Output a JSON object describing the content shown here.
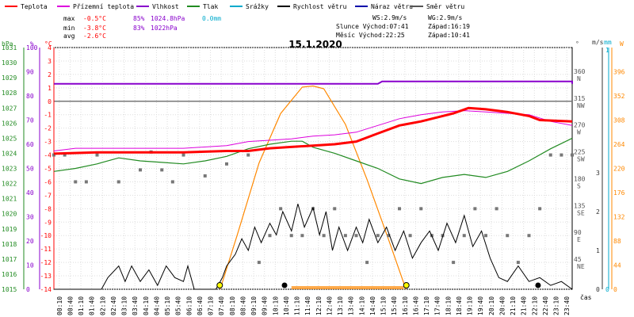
{
  "chart_data": {
    "type": "line",
    "title": "15.1.2020",
    "x_axis_label": "čas",
    "x_ticks": [
      "00:10",
      "00:40",
      "01:10",
      "01:40",
      "02:10",
      "02:40",
      "03:10",
      "03:40",
      "04:10",
      "04:40",
      "05:10",
      "05:40",
      "06:10",
      "06:40",
      "07:10",
      "07:40",
      "08:10",
      "08:40",
      "09:10",
      "09:40",
      "10:10",
      "10:40",
      "11:10",
      "11:40",
      "12:10",
      "12:40",
      "13:10",
      "13:40",
      "14:10",
      "14:40",
      "15:10",
      "15:40",
      "16:10",
      "16:40",
      "17:10",
      "17:40",
      "18:10",
      "18:40",
      "19:10",
      "19:40",
      "20:10",
      "20:40",
      "21:10",
      "21:40",
      "22:10",
      "22:40",
      "23:10",
      "23:40"
    ],
    "legend": [
      {
        "name": "Teplota",
        "color": "#ff0000"
      },
      {
        "name": "Přízemní teplota",
        "color": "#dd00dd"
      },
      {
        "name": "Vlhkost",
        "color": "#8800cc"
      },
      {
        "name": "Tlak",
        "color": "#228b22"
      },
      {
        "name": "Srážky",
        "color": "#00aacc"
      },
      {
        "name": "Rychlost větru",
        "color": "#000000"
      },
      {
        "name": "Náraz větru",
        "color": "#0000aa"
      },
      {
        "name": "Směr větru",
        "color": "#555555"
      }
    ],
    "stats": {
      "max": {
        "label": "max",
        "temp": "-0.5°C",
        "hum": "85%",
        "press": "1024.8hPa",
        "rain": "0.0mm"
      },
      "min": {
        "label": "min",
        "temp": "-3.8°C",
        "hum": "83%",
        "press": "1022hPa"
      },
      "avg": {
        "label": "avg",
        "temp": "-2.6°C"
      }
    },
    "info": {
      "ws": "WS:2.9m/s",
      "wg": "WG:2.9m/s",
      "sun_rise": "Slunce Východ:07:41",
      "sun_set": "Západ:16:19",
      "moon_rise": "Měsíc  Východ:22:25",
      "moon_set": "Západ:10:41"
    },
    "axes": {
      "hpa": {
        "label": "hPa",
        "min": 1015,
        "max": 1031,
        "ticks": [
          "1031",
          "1030",
          "1029",
          "1028",
          "1027",
          "1026",
          "1025",
          "1024",
          "1023",
          "1022",
          "1021",
          "1020",
          "1019",
          "1018",
          "1017",
          "1016",
          "1015"
        ]
      },
      "pct": {
        "label": "%",
        "min": 0,
        "max": 100,
        "ticks": [
          "100",
          "90",
          "80",
          "70",
          "60",
          "50",
          "40",
          "30",
          "20",
          "10",
          "0"
        ]
      },
      "temp": {
        "label": "°C",
        "min": -14,
        "max": 4,
        "ticks": [
          "4",
          "3",
          "2",
          "1",
          "0",
          "-1",
          "-2",
          "-3",
          "-4",
          "-5",
          "-6",
          "-7",
          "-8",
          "-9",
          "-10",
          "-11",
          "-12",
          "-13",
          "-14"
        ]
      },
      "dir": {
        "label": "°",
        "ticks": [
          {
            "deg": "360",
            "card": "N"
          },
          {
            "deg": "315",
            "card": "NW"
          },
          {
            "deg": "270",
            "card": "W"
          },
          {
            "deg": "225",
            "card": "SW"
          },
          {
            "deg": "180",
            "card": "S"
          },
          {
            "deg": "135",
            "card": "SE"
          },
          {
            "deg": "90",
            "card": "E"
          },
          {
            "deg": "45",
            "card": "NE"
          }
        ]
      },
      "ms": {
        "label": "m/s",
        "min": 0,
        "max": 3,
        "ticks": [
          "3",
          "2",
          "1",
          "0"
        ]
      },
      "mm": {
        "label": "mm",
        "ticks": [
          "1",
          "0"
        ]
      },
      "sun": {
        "label": "W",
        "ticks": [
          "396",
          "352",
          "308",
          "264",
          "220",
          "176",
          "132",
          "88",
          "44",
          "0"
        ]
      }
    },
    "series": {
      "temperature": {
        "unit": "°C",
        "points": [
          [
            0,
            -3.9
          ],
          [
            2,
            -3.8
          ],
          [
            4,
            -3.8
          ],
          [
            6,
            -3.8
          ],
          [
            8,
            -3.7
          ],
          [
            9,
            -3.7
          ],
          [
            10,
            -3.5
          ],
          [
            11,
            -3.4
          ],
          [
            12,
            -3.3
          ],
          [
            13,
            -3.2
          ],
          [
            14,
            -3.0
          ],
          [
            15,
            -2.4
          ],
          [
            16,
            -1.8
          ],
          [
            17,
            -1.5
          ],
          [
            18,
            -1.1
          ],
          [
            18.5,
            -0.9
          ],
          [
            19.2,
            -0.5
          ],
          [
            20,
            -0.6
          ],
          [
            21,
            -0.8
          ],
          [
            22,
            -1.1
          ],
          [
            22.5,
            -1.4
          ],
          [
            24,
            -1.5
          ]
        ]
      },
      "ground_temperature": {
        "unit": "°C",
        "points": [
          [
            0,
            -3.7
          ],
          [
            1,
            -3.5
          ],
          [
            3,
            -3.5
          ],
          [
            5,
            -3.5
          ],
          [
            6,
            -3.5
          ],
          [
            8,
            -3.3
          ],
          [
            9,
            -3.0
          ],
          [
            11,
            -2.8
          ],
          [
            12,
            -2.6
          ],
          [
            13,
            -2.5
          ],
          [
            14,
            -2.3
          ],
          [
            15,
            -1.8
          ],
          [
            16,
            -1.3
          ],
          [
            17,
            -1.0
          ],
          [
            18,
            -0.8
          ],
          [
            19,
            -0.7
          ],
          [
            20,
            -0.8
          ],
          [
            21,
            -0.9
          ],
          [
            22,
            -1.0
          ],
          [
            23,
            -1.5
          ],
          [
            24,
            -1.8
          ]
        ]
      },
      "humidity": {
        "unit": "%",
        "points": [
          [
            0,
            85
          ],
          [
            15,
            85
          ],
          [
            15.2,
            86
          ],
          [
            24,
            86
          ],
          [
            24,
            85
          ]
        ]
      },
      "humidity_ref": {
        "unit": "%",
        "value": 83
      },
      "pressure": {
        "unit": "hPa",
        "points": [
          [
            0,
            1022.8
          ],
          [
            1,
            1023.0
          ],
          [
            2,
            1023.3
          ],
          [
            3,
            1023.7
          ],
          [
            4,
            1023.5
          ],
          [
            5,
            1023.4
          ],
          [
            6,
            1023.3
          ],
          [
            7,
            1023.5
          ],
          [
            8,
            1023.8
          ],
          [
            9,
            1024.3
          ],
          [
            10,
            1024.6
          ],
          [
            11,
            1024.8
          ],
          [
            11.5,
            1024.8
          ],
          [
            12,
            1024.4
          ],
          [
            13,
            1024.0
          ],
          [
            14,
            1023.5
          ],
          [
            15,
            1023.0
          ],
          [
            16,
            1022.3
          ],
          [
            17,
            1022.0
          ],
          [
            18,
            1022.4
          ],
          [
            19,
            1022.6
          ],
          [
            20,
            1022.4
          ],
          [
            21,
            1022.8
          ],
          [
            22,
            1023.5
          ],
          [
            23,
            1024.3
          ],
          [
            24,
            1025.0
          ]
        ]
      },
      "wind_speed": {
        "unit": "m/s",
        "points": [
          [
            0,
            0
          ],
          [
            2.2,
            0
          ],
          [
            2.5,
            0.3
          ],
          [
            3,
            0.6
          ],
          [
            3.3,
            0.2
          ],
          [
            3.6,
            0.6
          ],
          [
            4,
            0.2
          ],
          [
            4.4,
            0.5
          ],
          [
            4.8,
            0.1
          ],
          [
            5.2,
            0.6
          ],
          [
            5.6,
            0.3
          ],
          [
            6,
            0.2
          ],
          [
            6.2,
            0.6
          ],
          [
            6.5,
            0
          ],
          [
            7.5,
            0
          ],
          [
            7.8,
            0.3
          ],
          [
            8,
            0.6
          ],
          [
            8.4,
            0.9
          ],
          [
            8.7,
            1.3
          ],
          [
            9,
            1.0
          ],
          [
            9.3,
            1.6
          ],
          [
            9.6,
            1.2
          ],
          [
            10,
            1.7
          ],
          [
            10.3,
            1.4
          ],
          [
            10.6,
            2.0
          ],
          [
            11,
            1.5
          ],
          [
            11.3,
            2.2
          ],
          [
            11.6,
            1.6
          ],
          [
            12,
            2.1
          ],
          [
            12.3,
            1.4
          ],
          [
            12.6,
            2.0
          ],
          [
            12.9,
            1.0
          ],
          [
            13.2,
            1.6
          ],
          [
            13.6,
            1.0
          ],
          [
            14,
            1.6
          ],
          [
            14.3,
            1.2
          ],
          [
            14.6,
            1.8
          ],
          [
            15,
            1.2
          ],
          [
            15.4,
            1.6
          ],
          [
            15.8,
            1.0
          ],
          [
            16.2,
            1.5
          ],
          [
            16.6,
            0.8
          ],
          [
            17,
            1.2
          ],
          [
            17.4,
            1.5
          ],
          [
            17.8,
            1.0
          ],
          [
            18.2,
            1.7
          ],
          [
            18.6,
            1.2
          ],
          [
            19,
            1.9
          ],
          [
            19.4,
            1.1
          ],
          [
            19.8,
            1.5
          ],
          [
            20.2,
            0.8
          ],
          [
            20.6,
            0.3
          ],
          [
            21,
            0.2
          ],
          [
            21.5,
            0.6
          ],
          [
            22,
            0.2
          ],
          [
            22.5,
            0.3
          ],
          [
            23,
            0.1
          ],
          [
            23.5,
            0.2
          ],
          [
            24,
            0
          ]
        ]
      },
      "wind_gust": {
        "unit": "m/s",
        "points": []
      },
      "wind_direction": {
        "unit": "deg",
        "points": [
          [
            0,
            225
          ],
          [
            0.5,
            225
          ],
          [
            1,
            180
          ],
          [
            1.5,
            180
          ],
          [
            2,
            225
          ],
          [
            3,
            180
          ],
          [
            4,
            200
          ],
          [
            4.5,
            230
          ],
          [
            5,
            200
          ],
          [
            5.5,
            180
          ],
          [
            6,
            225
          ],
          [
            7,
            190
          ],
          [
            8,
            210
          ],
          [
            9,
            225
          ],
          [
            9.5,
            45
          ],
          [
            10,
            90
          ],
          [
            10.5,
            135
          ],
          [
            11,
            90
          ],
          [
            11.5,
            90
          ],
          [
            12,
            135
          ],
          [
            12.5,
            90
          ],
          [
            13,
            135
          ],
          [
            13.5,
            90
          ],
          [
            14,
            90
          ],
          [
            14.5,
            45
          ],
          [
            15,
            90
          ],
          [
            15.5,
            90
          ],
          [
            16,
            135
          ],
          [
            16.5,
            90
          ],
          [
            17,
            135
          ],
          [
            17.5,
            90
          ],
          [
            18,
            90
          ],
          [
            18.5,
            45
          ],
          [
            19,
            90
          ],
          [
            19.5,
            135
          ],
          [
            20,
            90
          ],
          [
            20.5,
            135
          ],
          [
            21,
            90
          ],
          [
            21.5,
            45
          ],
          [
            22,
            90
          ],
          [
            22.5,
            135
          ],
          [
            23,
            225
          ],
          [
            23.5,
            225
          ],
          [
            24,
            225
          ]
        ]
      },
      "solar_radiation": {
        "unit": "W/m2",
        "points": [
          [
            7.7,
            0
          ],
          [
            8.5,
            100
          ],
          [
            9.5,
            230
          ],
          [
            10.5,
            320
          ],
          [
            11.5,
            368
          ],
          [
            12,
            370
          ],
          [
            12.5,
            365
          ],
          [
            13.5,
            300
          ],
          [
            14.5,
            200
          ],
          [
            15.5,
            90
          ],
          [
            16.3,
            0
          ]
        ]
      },
      "precipitation": {
        "unit": "mm",
        "points": []
      }
    },
    "markers": {
      "sun_rise": {
        "time": 7.68
      },
      "sun_set": {
        "time": 16.32
      },
      "moon_set": {
        "time": 10.68
      },
      "moon_rise": {
        "time": 22.42
      }
    }
  }
}
